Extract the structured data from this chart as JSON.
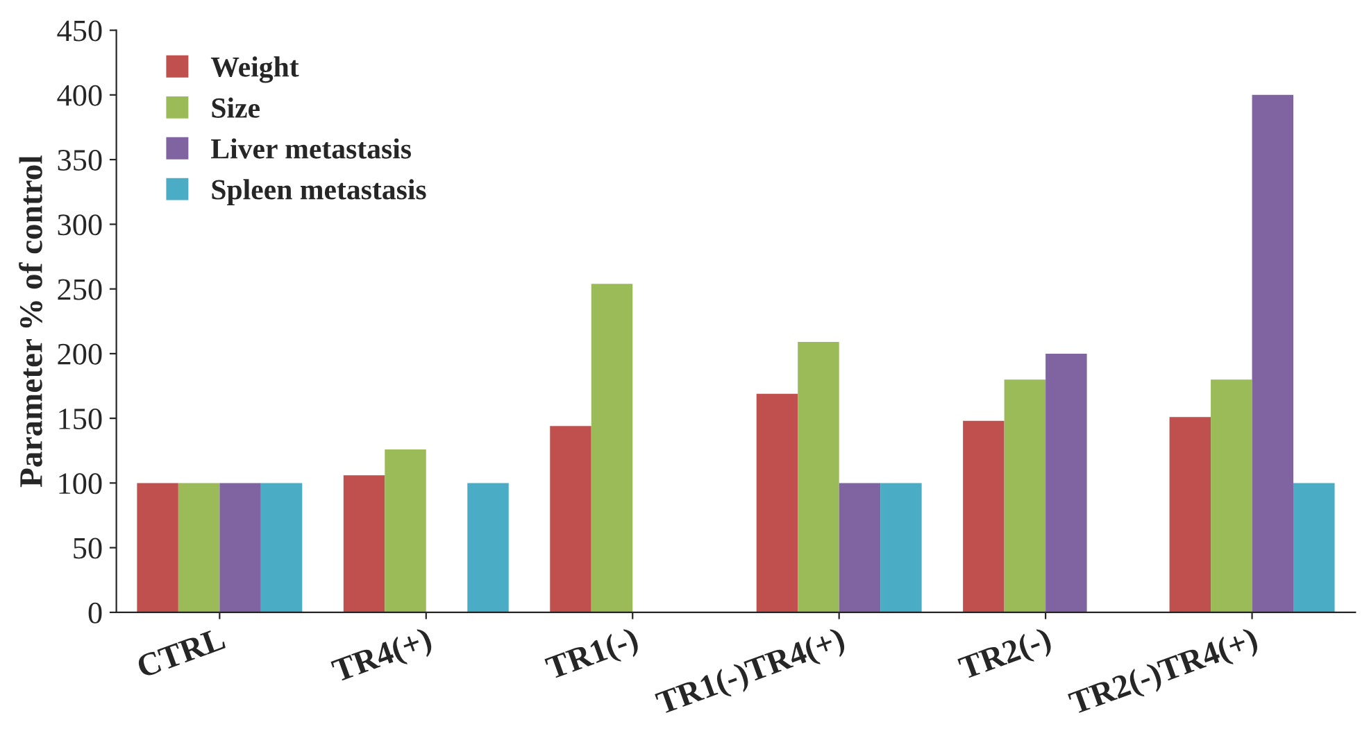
{
  "chart_data": {
    "type": "bar",
    "ylabel": "Parameter % of control",
    "categories": [
      "CTRL",
      "TR4(+)",
      "TR1(-)",
      "TR1(-)TR4(+)",
      "TR2(-)",
      "TR2(-)TR4(+)"
    ],
    "series": [
      {
        "name": "Weight",
        "color": "#c0504d",
        "values": [
          100,
          106,
          144,
          169,
          148,
          151
        ]
      },
      {
        "name": "Size",
        "color": "#9bbb59",
        "values": [
          100,
          126,
          254,
          209,
          180,
          180
        ]
      },
      {
        "name": "Liver metastasis",
        "color": "#8064a2",
        "values": [
          100,
          null,
          null,
          100,
          200,
          400
        ]
      },
      {
        "name": "Spleen metastasis",
        "color": "#4bacc6",
        "values": [
          100,
          100,
          null,
          100,
          null,
          100
        ]
      }
    ],
    "ylim": [
      0,
      450
    ],
    "yticks": [
      0,
      50,
      100,
      150,
      200,
      250,
      300,
      350,
      400,
      450
    ],
    "grid": false,
    "legend": "top left"
  }
}
